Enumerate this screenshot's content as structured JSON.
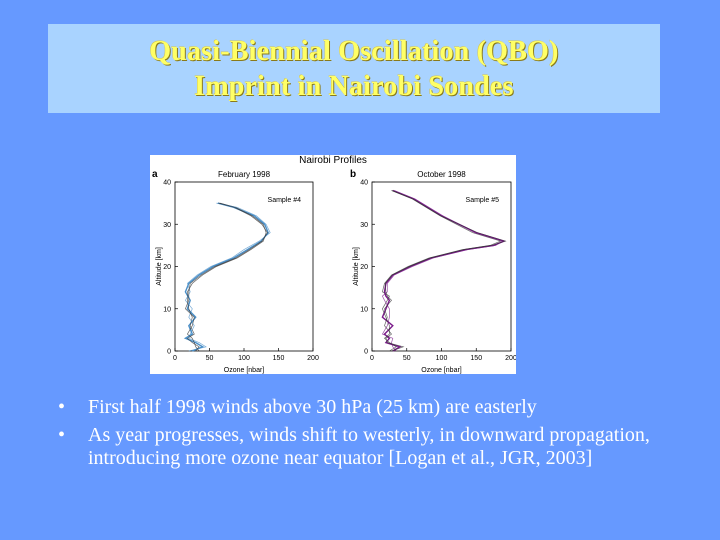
{
  "slide": {
    "title_line1": "Quasi-Biennial Oscillation (QBO)",
    "title_line2": "Imprint in Nairobi Sondes",
    "accent_color": "#ffff66",
    "background_color": "#6699ff",
    "title_box_color": "#a9d3ff",
    "bullets": [
      {
        "marker": "•",
        "text": "First half 1998 winds above 30 hPa (25 km) are easterly"
      },
      {
        "marker": "•",
        "text": "As year progresses, winds shift to westerly, in downward propagation, introducing more ozone near equator [Logan et al., JGR, 2003]"
      }
    ]
  },
  "chart_data": [
    {
      "type": "line",
      "figure_title": "Nairobi Profiles",
      "panel": "a",
      "subtitle": "February 1998",
      "annotation": "Sample #4",
      "xlabel": "Ozone [nbar]",
      "ylabel": "Altitude [km]",
      "xlim": [
        0,
        200
      ],
      "ylim": [
        0,
        40
      ],
      "xticks": [
        "0",
        "50",
        "100",
        "150",
        "200"
      ],
      "yticks": [
        "0",
        "10",
        "20",
        "30",
        "40"
      ],
      "grid": false,
      "series_color": "#4a8fc8",
      "series": [
        {
          "x": [
            25,
            40,
            30,
            15,
            25,
            20,
            30,
            18,
            22,
            15,
            20,
            35,
            55,
            85,
            105,
            125,
            135,
            130,
            115,
            85,
            62
          ],
          "y": [
            0,
            1,
            2,
            3,
            4,
            6,
            8,
            10,
            12,
            14,
            16,
            18,
            20,
            22,
            24,
            26,
            28,
            30,
            32,
            34,
            35
          ]
        },
        {
          "x": [
            30,
            35,
            25,
            18,
            28,
            22,
            25,
            20,
            18,
            18,
            25,
            40,
            60,
            90,
            110,
            128,
            132,
            128,
            112,
            88,
            65
          ],
          "y": [
            0,
            1,
            2,
            3,
            4,
            6,
            8,
            10,
            12,
            14,
            16,
            18,
            20,
            22,
            24,
            26,
            28,
            30,
            32,
            34,
            35
          ]
        },
        {
          "x": [
            20,
            45,
            35,
            20,
            22,
            28,
            20,
            25,
            15,
            22,
            18,
            32,
            52,
            82,
            100,
            122,
            138,
            132,
            118,
            90,
            60
          ],
          "y": [
            0,
            1,
            2,
            3,
            4,
            6,
            8,
            10,
            12,
            14,
            16,
            18,
            20,
            22,
            24,
            26,
            28,
            30,
            32,
            34,
            35
          ]
        },
        {
          "x": [
            35,
            30,
            28,
            25,
            18,
            25,
            28,
            15,
            20,
            20,
            22,
            38,
            58,
            88,
            108,
            126,
            134,
            126,
            110,
            86,
            63
          ],
          "y": [
            0,
            1,
            2,
            3,
            4,
            6,
            8,
            10,
            12,
            14,
            16,
            18,
            20,
            22,
            24,
            26,
            28,
            30,
            32,
            34,
            35
          ]
        }
      ]
    },
    {
      "type": "line",
      "panel": "b",
      "subtitle": "October 1998",
      "annotation": "Sample #5",
      "xlabel": "Ozone [nbar]",
      "ylabel": "Altitude [km]",
      "xlim": [
        0,
        200
      ],
      "ylim": [
        0,
        40
      ],
      "xticks": [
        "0",
        "50",
        "100",
        "150",
        "200"
      ],
      "yticks": [
        "0",
        "10",
        "20",
        "30",
        "40"
      ],
      "grid": false,
      "series_color": "#7a1a8a",
      "series": [
        {
          "x": [
            30,
            40,
            20,
            25,
            18,
            30,
            15,
            20,
            25,
            20,
            18,
            20,
            30,
            55,
            85,
            135,
            175,
            190,
            150,
            100,
            60,
            30
          ],
          "y": [
            0,
            1,
            2,
            3,
            4,
            6,
            8,
            10,
            12,
            13,
            14,
            16,
            18,
            20,
            22,
            24,
            25,
            26,
            28,
            32,
            36,
            38
          ]
        },
        {
          "x": [
            25,
            35,
            25,
            18,
            25,
            25,
            20,
            15,
            22,
            25,
            15,
            18,
            28,
            52,
            82,
            130,
            170,
            185,
            145,
            98,
            58,
            28
          ],
          "y": [
            0,
            1,
            2,
            3,
            4,
            6,
            8,
            10,
            12,
            13,
            14,
            16,
            18,
            20,
            22,
            24,
            25,
            26,
            28,
            32,
            36,
            38
          ]
        },
        {
          "x": [
            35,
            30,
            28,
            30,
            15,
            22,
            25,
            25,
            18,
            15,
            22,
            22,
            32,
            58,
            88,
            138,
            178,
            188,
            148,
            102,
            62,
            32
          ],
          "y": [
            0,
            1,
            2,
            3,
            4,
            6,
            8,
            10,
            12,
            13,
            14,
            16,
            18,
            20,
            22,
            24,
            25,
            26,
            28,
            32,
            36,
            38
          ]
        },
        {
          "x": [
            28,
            45,
            22,
            20,
            28,
            18,
            22,
            18,
            28,
            22,
            20,
            19,
            29,
            54,
            84,
            132,
            172,
            192,
            152,
            99,
            59,
            29
          ],
          "y": [
            0,
            1,
            2,
            3,
            4,
            6,
            8,
            10,
            12,
            13,
            14,
            16,
            18,
            20,
            22,
            24,
            25,
            26,
            28,
            32,
            36,
            38
          ]
        }
      ]
    }
  ]
}
